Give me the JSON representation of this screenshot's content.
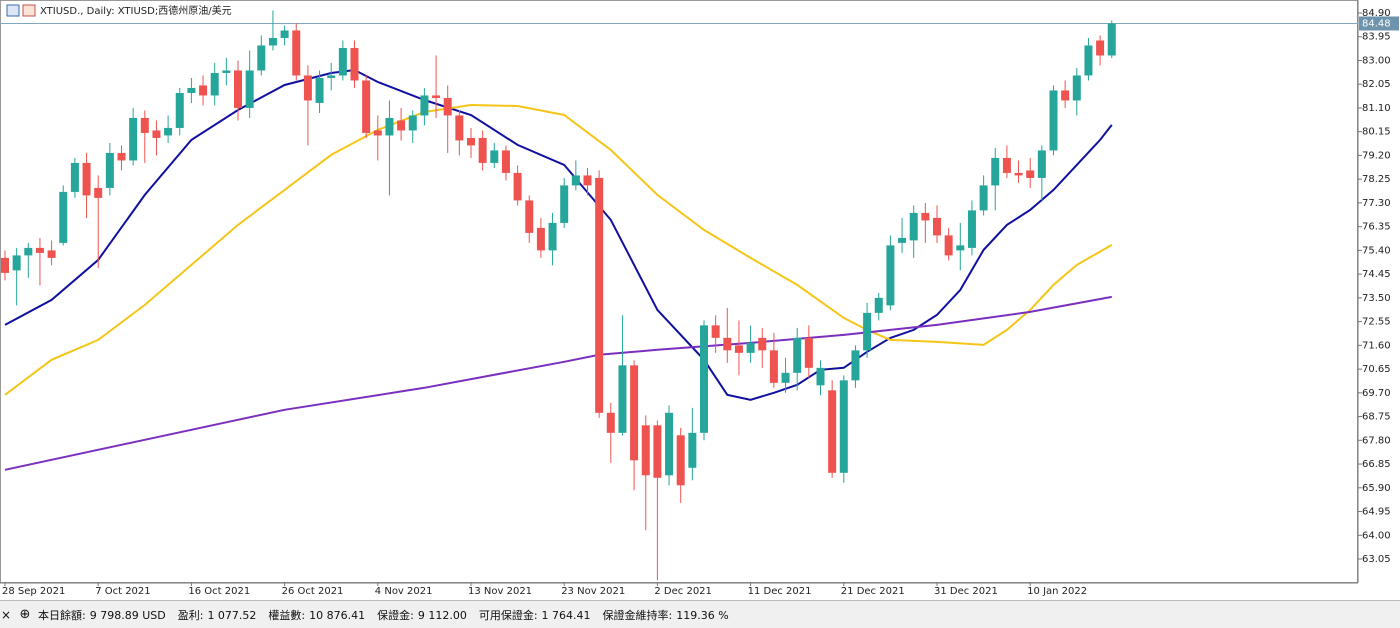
{
  "chart_data": {
    "type": "candlestick",
    "title": "XTIUSD., Daily:  XTIUSD;西德州原油/美元",
    "categories": [
      "28 Sep 2021",
      null,
      null,
      null,
      null,
      null,
      null,
      null,
      "7 Oct 2021",
      null,
      null,
      null,
      null,
      null,
      null,
      null,
      "16 Oct 2021",
      null,
      null,
      null,
      null,
      null,
      null,
      null,
      "26 Oct 2021",
      null,
      null,
      null,
      null,
      null,
      null,
      null,
      "4 Nov 2021",
      null,
      null,
      null,
      null,
      null,
      null,
      null,
      "13 Nov 2021",
      null,
      null,
      null,
      null,
      null,
      null,
      null,
      "23 Nov 2021",
      null,
      null,
      null,
      null,
      null,
      null,
      null,
      "2 Dec 2021",
      null,
      null,
      null,
      null,
      null,
      null,
      null,
      "11 Dec 2021",
      null,
      null,
      null,
      null,
      null,
      null,
      null,
      "21 Dec 2021",
      null,
      null,
      null,
      null,
      null,
      null,
      null,
      "31 Dec 2021",
      null,
      null,
      null,
      null,
      null,
      null,
      null,
      "10 Jan 2022",
      null,
      null,
      null,
      null,
      null,
      null,
      null
    ],
    "open": [
      75.1,
      74.6,
      75.2,
      75.5,
      75.4,
      75.7,
      77.74,
      78.9,
      77.9,
      77.9,
      79.3,
      79.0,
      80.7,
      80.2,
      80.0,
      80.3,
      81.7,
      82.0,
      81.6,
      82.5,
      82.6,
      81.1,
      82.6,
      83.6,
      83.9,
      84.2,
      82.4,
      81.3,
      82.3,
      82.4,
      83.5,
      82.2,
      80.2,
      80.0,
      80.6,
      80.2,
      80.8,
      81.6,
      81.5,
      80.8,
      79.9,
      79.9,
      78.9,
      79.4,
      78.5,
      77.4,
      76.3,
      75.4,
      76.5,
      78.0,
      78.4,
      78.3,
      68.9,
      68.1,
      70.8,
      68.4,
      68.4,
      66.4,
      68.0,
      66.7,
      68.1,
      72.4,
      71.9,
      71.6,
      71.3,
      71.9,
      71.4,
      70.1,
      70.5,
      71.9,
      70.0,
      69.8,
      66.5,
      70.2,
      71.4,
      72.9,
      73.2,
      75.7,
      75.8,
      76.9,
      76.7,
      76.0,
      75.4,
      75.5,
      77.0,
      78.0,
      79.1,
      78.5,
      78.6,
      78.3,
      79.4,
      81.8,
      81.4,
      82.4,
      83.8,
      83.2
    ],
    "high": [
      75.4,
      75.5,
      75.7,
      75.9,
      75.8,
      78.0,
      79.1,
      79.3,
      78.4,
      79.7,
      79.6,
      81.1,
      81.0,
      80.6,
      80.8,
      81.9,
      82.3,
      82.4,
      82.9,
      83.1,
      83.0,
      83.4,
      84.0,
      85.0,
      84.4,
      84.5,
      82.8,
      82.6,
      82.9,
      83.8,
      83.8,
      82.4,
      80.8,
      81.4,
      81.1,
      81.0,
      81.9,
      83.2,
      82.0,
      81.0,
      80.3,
      80.2,
      79.7,
      79.6,
      78.8,
      77.6,
      76.7,
      76.9,
      78.3,
      79.0,
      78.7,
      78.6,
      69.3,
      72.8,
      71.0,
      68.8,
      68.6,
      69.2,
      68.3,
      69.1,
      72.6,
      72.8,
      73.1,
      72.6,
      72.4,
      72.3,
      72.1,
      71.1,
      72.3,
      72.4,
      71.0,
      70.2,
      70.4,
      71.6,
      73.3,
      73.7,
      76.0,
      76.7,
      77.2,
      77.3,
      77.2,
      76.3,
      76.5,
      77.4,
      78.4,
      79.5,
      79.6,
      79.0,
      79.1,
      79.6,
      82.0,
      82.2,
      82.7,
      83.9,
      84.0,
      84.6
    ],
    "low": [
      74.2,
      73.2,
      74.3,
      74.0,
      74.8,
      75.6,
      77.5,
      76.7,
      74.7,
      77.6,
      78.6,
      78.8,
      78.9,
      79.2,
      79.7,
      80.0,
      81.3,
      81.2,
      81.2,
      82.0,
      80.6,
      80.7,
      82.4,
      83.4,
      83.6,
      82.2,
      79.6,
      80.9,
      81.8,
      82.2,
      81.9,
      79.9,
      79.0,
      77.6,
      79.8,
      79.7,
      80.4,
      80.7,
      79.3,
      79.2,
      79.1,
      78.6,
      78.7,
      78.2,
      77.2,
      75.7,
      75.1,
      74.8,
      76.3,
      77.8,
      77.6,
      68.7,
      66.9,
      68.0,
      65.8,
      64.2,
      62.2,
      66.0,
      65.3,
      66.2,
      67.8,
      71.3,
      70.9,
      70.4,
      70.9,
      70.7,
      69.9,
      69.7,
      69.8,
      70.3,
      69.6,
      66.3,
      66.1,
      69.9,
      71.1,
      72.6,
      73.0,
      75.3,
      75.1,
      75.7,
      75.7,
      75.0,
      74.6,
      75.2,
      76.8,
      77.0,
      78.3,
      78.1,
      77.9,
      77.4,
      79.2,
      81.1,
      80.8,
      82.2,
      82.8,
      83.1
    ],
    "close": [
      74.5,
      75.2,
      75.5,
      75.3,
      75.1,
      77.74,
      78.9,
      77.6,
      77.5,
      79.3,
      79.0,
      80.7,
      80.1,
      79.9,
      80.3,
      81.7,
      81.9,
      81.6,
      82.5,
      82.6,
      81.1,
      82.6,
      83.6,
      83.9,
      84.2,
      82.4,
      81.4,
      82.3,
      82.4,
      83.5,
      82.2,
      80.1,
      80.0,
      80.7,
      80.2,
      80.8,
      81.6,
      81.5,
      80.8,
      79.8,
      79.6,
      78.9,
      79.4,
      78.5,
      77.4,
      76.1,
      75.4,
      76.5,
      78.0,
      78.4,
      78.0,
      68.9,
      68.1,
      70.8,
      67.0,
      66.4,
      66.3,
      68.9,
      66.0,
      68.1,
      72.4,
      71.9,
      71.4,
      71.3,
      71.7,
      71.4,
      70.1,
      70.5,
      71.9,
      70.7,
      70.7,
      66.5,
      70.2,
      71.4,
      72.9,
      73.5,
      75.6,
      75.9,
      76.9,
      76.6,
      76.0,
      75.2,
      75.6,
      77.0,
      78.0,
      79.1,
      78.5,
      78.4,
      78.3,
      79.4,
      81.8,
      81.4,
      82.4,
      83.6,
      83.2,
      84.48
    ],
    "up_color": "#26a69a",
    "down_color": "#ef5350",
    "lines": [
      {
        "color": "#1010a0",
        "x": [
          0,
          4,
          8,
          12,
          16,
          20,
          24,
          28,
          30,
          32,
          36,
          40,
          44,
          48,
          52,
          56,
          60,
          62,
          64,
          66,
          68,
          70,
          72,
          74,
          76,
          78,
          80,
          82,
          84,
          86,
          88,
          90,
          92,
          94,
          95
        ],
        "values": [
          72.42,
          73.42,
          75.02,
          77.62,
          79.82,
          81.02,
          82.02,
          82.5,
          82.62,
          82.14,
          81.42,
          80.82,
          79.62,
          78.82,
          76.62,
          73.02,
          71.02,
          69.62,
          69.42,
          69.7,
          70.02,
          70.62,
          70.7,
          71.34,
          71.9,
          72.22,
          72.82,
          73.82,
          75.42,
          76.42,
          77.02,
          77.82,
          78.82,
          79.82,
          80.42
        ]
      },
      {
        "color": "#f5c518",
        "x": [
          0,
          4,
          8,
          12,
          16,
          20,
          24,
          28,
          32,
          36,
          40,
          44,
          48,
          52,
          56,
          60,
          64,
          68,
          72,
          74,
          76,
          80,
          84,
          86,
          88,
          90,
          92,
          95
        ],
        "values": [
          69.62,
          71.02,
          71.82,
          73.22,
          74.82,
          76.42,
          77.82,
          79.22,
          80.22,
          80.94,
          81.22,
          81.18,
          80.82,
          79.42,
          77.62,
          76.22,
          75.1,
          74.02,
          72.7,
          72.22,
          71.82,
          71.74,
          71.62,
          72.22,
          73.02,
          74.02,
          74.82,
          75.62
        ]
      },
      {
        "color": "#7b2fbe",
        "x": [
          0,
          12,
          24,
          36,
          48,
          51,
          56,
          64,
          72,
          80,
          88,
          95
        ],
        "values": [
          66.62,
          67.82,
          69.02,
          69.9,
          70.94,
          71.22,
          71.42,
          71.7,
          72.02,
          72.42,
          72.94,
          73.54
        ]
      }
    ],
    "last_price": 84.48,
    "ylim": [
      62.13,
      85.42
    ],
    "yticks": [
      {
        "value": 84.9,
        "label": "84.90"
      },
      {
        "value": 83.95,
        "label": "83.95"
      },
      {
        "value": 83.0,
        "label": "83.00"
      },
      {
        "value": 82.05,
        "label": "82.05"
      },
      {
        "value": 81.1,
        "label": "81.10"
      },
      {
        "value": 80.15,
        "label": "80.15"
      },
      {
        "value": 79.2,
        "label": "79.20"
      },
      {
        "value": 78.25,
        "label": "78.25"
      },
      {
        "value": 77.3,
        "label": "77.30"
      },
      {
        "value": 76.35,
        "label": "76.35"
      },
      {
        "value": 75.4,
        "label": "75.40"
      },
      {
        "value": 74.45,
        "label": "74.45"
      },
      {
        "value": 73.5,
        "label": "73.50"
      },
      {
        "value": 72.55,
        "label": "72.55"
      },
      {
        "value": 71.6,
        "label": "71.60"
      },
      {
        "value": 70.65,
        "label": "70.65"
      },
      {
        "value": 69.7,
        "label": "69.70"
      },
      {
        "value": 68.75,
        "label": "68.75"
      },
      {
        "value": 67.8,
        "label": "67.80"
      },
      {
        "value": 66.85,
        "label": "66.85"
      },
      {
        "value": 65.9,
        "label": "65.90"
      },
      {
        "value": 64.95,
        "label": "64.95"
      },
      {
        "value": 64.0,
        "label": "64.00"
      },
      {
        "value": 63.05,
        "label": "63.05"
      }
    ]
  },
  "status_bar": [
    {
      "label": "本日餘額:",
      "value": "9 798.89 USD"
    },
    {
      "label": "盈利:",
      "value": "1 077.52"
    },
    {
      "label": "權益數:",
      "value": "10 876.41"
    },
    {
      "label": "保證金:",
      "value": "9 112.00"
    },
    {
      "label": "可用保證金:",
      "value": "1 764.41"
    },
    {
      "label": "保證金維持率:",
      "value": "119.36 %"
    }
  ]
}
